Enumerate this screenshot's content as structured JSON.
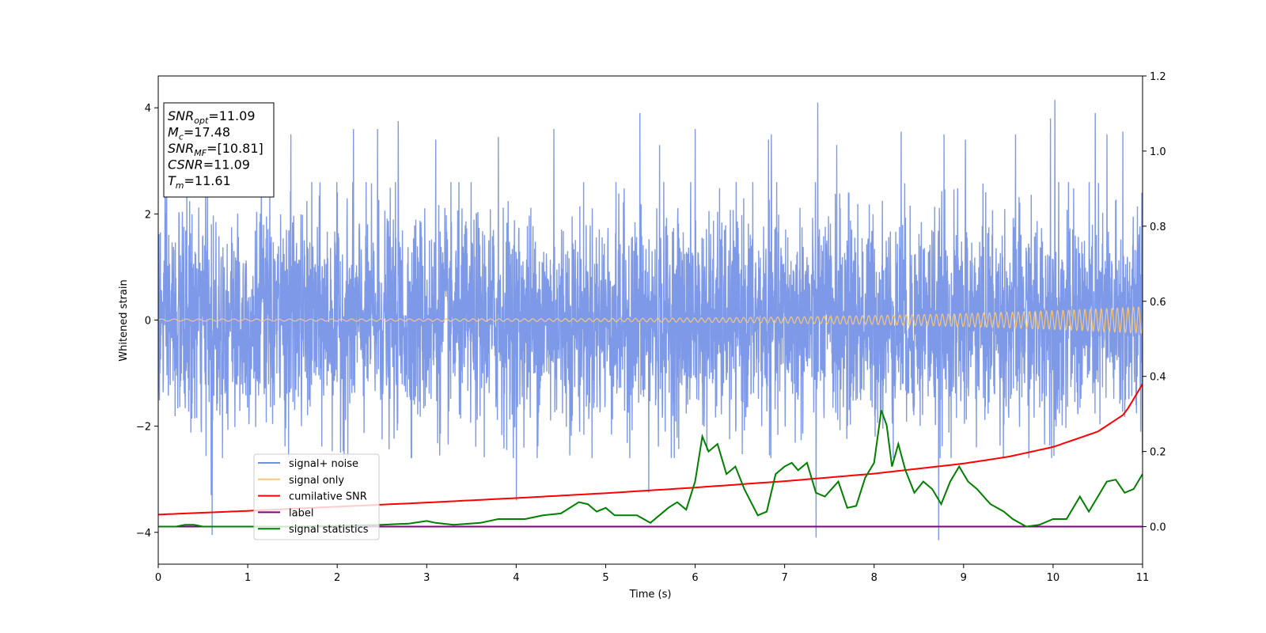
{
  "chart_data": {
    "type": "line",
    "title": "",
    "xlabel": "Time (s)",
    "ylabel": "Whitened strain",
    "xlim": [
      0,
      11
    ],
    "ylim_left": [
      -4.6,
      4.6
    ],
    "ylim_right": [
      -0.1,
      1.2
    ],
    "x_ticks": [
      0,
      1,
      2,
      3,
      4,
      5,
      6,
      7,
      8,
      9,
      10,
      11
    ],
    "y_ticks_left": [
      -4,
      -2,
      0,
      2,
      4
    ],
    "y_ticks_right": [
      0.0,
      0.2,
      0.4,
      0.6,
      0.8,
      1.0,
      1.2
    ],
    "y_tick_labels_left": [
      "−4",
      "−2",
      "0",
      "2",
      "4"
    ],
    "y_tick_labels_right": [
      "0.0",
      "0.2",
      "0.4",
      "0.6",
      "0.8",
      "1.0",
      "1.2"
    ],
    "grid": false,
    "legend_position": "lower-left",
    "info_box": {
      "lines": [
        {
          "sym": "SNR",
          "sub": "opt",
          "val": "=11.09"
        },
        {
          "sym": "M",
          "sub": "c",
          "val": "=17.48"
        },
        {
          "sym": "SNR",
          "sub": "MF",
          "val": "=[10.81]"
        },
        {
          "sym": "CSNR",
          "sub": "",
          "val": "=11.09"
        },
        {
          "sym": "T",
          "sub": "m",
          "val": "=11.61"
        }
      ]
    },
    "series": [
      {
        "name": "signal+ noise",
        "axis": "left",
        "color": "#6f8ee6",
        "kind": "noise",
        "envelope_sigma": 1.0,
        "typical_range": [
          -2.5,
          2.5
        ],
        "spikes": [
          [
            0.09,
            2.7
          ],
          [
            0.55,
            2.5
          ],
          [
            0.59,
            -3.3
          ],
          [
            0.6,
            -4.05
          ],
          [
            1.15,
            2.8
          ],
          [
            1.48,
            3.5
          ],
          [
            2.18,
            3.6
          ],
          [
            2.45,
            3.6
          ],
          [
            2.68,
            3.75
          ],
          [
            3.1,
            3.4
          ],
          [
            3.8,
            3.45
          ],
          [
            4.0,
            -3.4
          ],
          [
            4.42,
            3.6
          ],
          [
            5.38,
            3.9
          ],
          [
            5.48,
            -3.25
          ],
          [
            5.6,
            3.3
          ],
          [
            6.0,
            3.6
          ],
          [
            6.82,
            3.4
          ],
          [
            6.85,
            3.5
          ],
          [
            7.35,
            -4.1
          ],
          [
            7.37,
            4.1
          ],
          [
            7.58,
            3.3
          ],
          [
            8.3,
            3.55
          ],
          [
            8.72,
            -4.15
          ],
          [
            8.78,
            3.5
          ],
          [
            9.02,
            3.4
          ],
          [
            9.58,
            3.5
          ],
          [
            9.97,
            3.8
          ],
          [
            10.02,
            4.15
          ],
          [
            10.47,
            3.9
          ],
          [
            10.6,
            3.5
          ],
          [
            10.78,
            3.55
          ],
          [
            10.99,
            2.4
          ]
        ]
      },
      {
        "name": "signal only",
        "axis": "left",
        "color": "#f5c77e",
        "kind": "chirp",
        "amplitude_start": 0.02,
        "amplitude_end": 0.25
      },
      {
        "name": "cumilative SNR",
        "axis": "right",
        "color": "#ff0000",
        "x": [
          0,
          1,
          2,
          3,
          4,
          5,
          6,
          7,
          8,
          9,
          9.5,
          10,
          10.5,
          10.8,
          11
        ],
        "y": [
          0.032,
          0.042,
          0.053,
          0.064,
          0.076,
          0.089,
          0.104,
          0.121,
          0.141,
          0.168,
          0.186,
          0.212,
          0.253,
          0.3,
          0.38
        ]
      },
      {
        "name": "label",
        "axis": "right",
        "color": "#800080",
        "x": [
          0,
          11
        ],
        "y": [
          0.0,
          0.0
        ]
      },
      {
        "name": "signal statistics",
        "axis": "right",
        "color": "#008000",
        "x": [
          0,
          0.2,
          0.3,
          0.4,
          0.5,
          1,
          1.5,
          2,
          2.5,
          2.8,
          3,
          3.1,
          3.3,
          3.6,
          3.8,
          4,
          4.1,
          4.3,
          4.5,
          4.7,
          4.8,
          4.9,
          5,
          5.1,
          5.2,
          5.35,
          5.5,
          5.6,
          5.7,
          5.8,
          5.9,
          6,
          6.08,
          6.15,
          6.25,
          6.35,
          6.45,
          6.55,
          6.7,
          6.8,
          6.9,
          7.0,
          7.08,
          7.15,
          7.25,
          7.35,
          7.45,
          7.6,
          7.7,
          7.8,
          7.9,
          8.0,
          8.08,
          8.14,
          8.2,
          8.27,
          8.35,
          8.45,
          8.55,
          8.65,
          8.75,
          8.85,
          8.95,
          9.05,
          9.15,
          9.3,
          9.45,
          9.55,
          9.7,
          9.85,
          10.0,
          10.15,
          10.3,
          10.4,
          10.5,
          10.6,
          10.7,
          10.8,
          10.9,
          11
        ],
        "y": [
          0.0,
          0.0,
          0.005,
          0.005,
          0.0,
          0.0,
          0.0,
          0.002,
          0.005,
          0.008,
          0.015,
          0.01,
          0.005,
          0.01,
          0.02,
          0.02,
          0.02,
          0.03,
          0.035,
          0.065,
          0.06,
          0.04,
          0.05,
          0.03,
          0.03,
          0.03,
          0.01,
          0.03,
          0.05,
          0.065,
          0.045,
          0.12,
          0.24,
          0.2,
          0.22,
          0.14,
          0.16,
          0.1,
          0.03,
          0.04,
          0.14,
          0.16,
          0.17,
          0.15,
          0.17,
          0.09,
          0.08,
          0.12,
          0.05,
          0.055,
          0.13,
          0.17,
          0.31,
          0.27,
          0.16,
          0.22,
          0.15,
          0.09,
          0.12,
          0.1,
          0.06,
          0.12,
          0.16,
          0.12,
          0.1,
          0.06,
          0.04,
          0.02,
          0.0,
          0.005,
          0.02,
          0.02,
          0.08,
          0.04,
          0.08,
          0.12,
          0.125,
          0.09,
          0.1,
          0.14
        ]
      }
    ]
  }
}
